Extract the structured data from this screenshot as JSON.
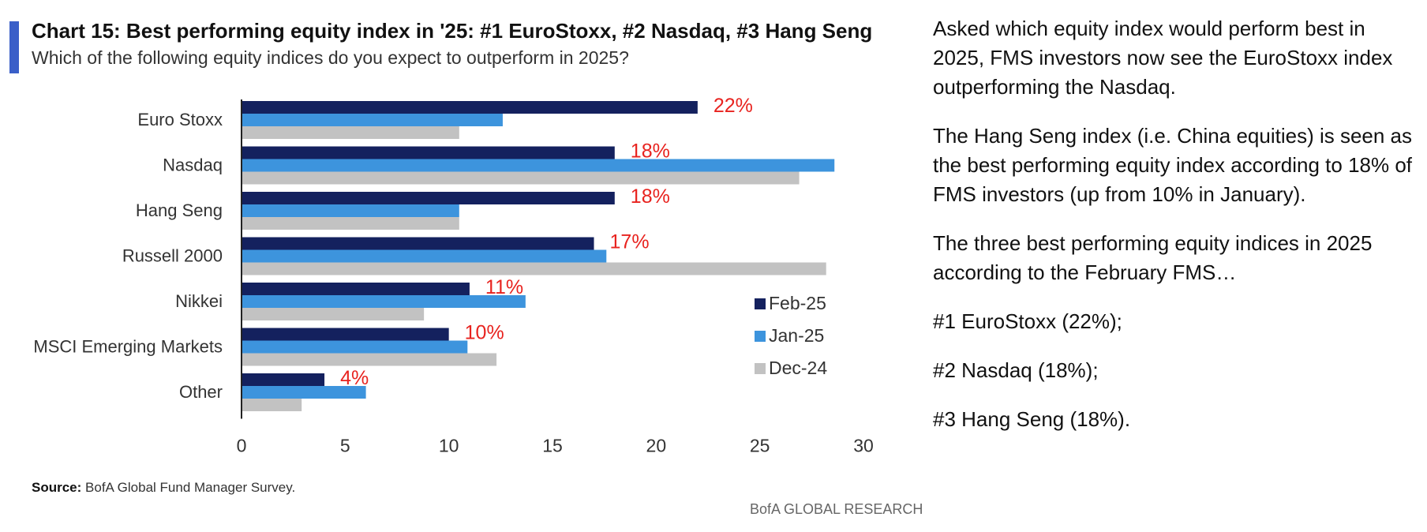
{
  "header": {
    "title": "Chart 15: Best performing equity index in '25: #1 EuroStoxx, #2 Nasdaq, #3 Hang Seng",
    "subtitle": "Which of the following equity indices do you expect to outperform in 2025?"
  },
  "chart_data": {
    "type": "bar",
    "orientation": "horizontal",
    "categories": [
      "Euro Stoxx",
      "Nasdaq",
      "Hang Seng",
      "Russell 2000",
      "Nikkei",
      "MSCI Emerging Markets",
      "Other"
    ],
    "series": [
      {
        "name": "Feb-25",
        "color": "#14215e",
        "values": [
          22,
          18,
          18,
          17,
          11,
          10,
          4
        ]
      },
      {
        "name": "Jan-25",
        "color": "#3d94dd",
        "values": [
          12.6,
          28.6,
          10.5,
          17.6,
          13.7,
          10.9,
          6
        ]
      },
      {
        "name": "Dec-24",
        "color": "#c2c2c2",
        "values": [
          10.5,
          26.9,
          10.5,
          28.2,
          8.8,
          12.3,
          2.9
        ]
      }
    ],
    "data_labels": [
      "22%",
      "18%",
      "18%",
      "17%",
      "11%",
      "10%",
      "4%"
    ],
    "data_label_color": "#e8231f",
    "xlim": [
      0,
      30
    ],
    "xticks": [
      "0",
      "5",
      "10",
      "15",
      "20",
      "25",
      "30"
    ],
    "legend_position": "lower-right",
    "grid": false
  },
  "source": {
    "label": "Source:",
    "text": "BofA Global Fund Manager Survey."
  },
  "brand": "BofA GLOBAL RESEARCH",
  "commentary": [
    "Asked which equity index would perform best in 2025, FMS investors now see the EuroStoxx index outperforming the Nasdaq.",
    "The Hang Seng index (i.e. China equities) is seen as the best performing equity index according to 18% of FMS investors (up from 10% in January).",
    "The three best performing equity indices in 2025 according to the February FMS…",
    "#1 EuroStoxx (22%);",
    "#2 Nasdaq (18%);",
    "#3 Hang Seng (18%)."
  ],
  "accent_color": "#3a5fc8"
}
